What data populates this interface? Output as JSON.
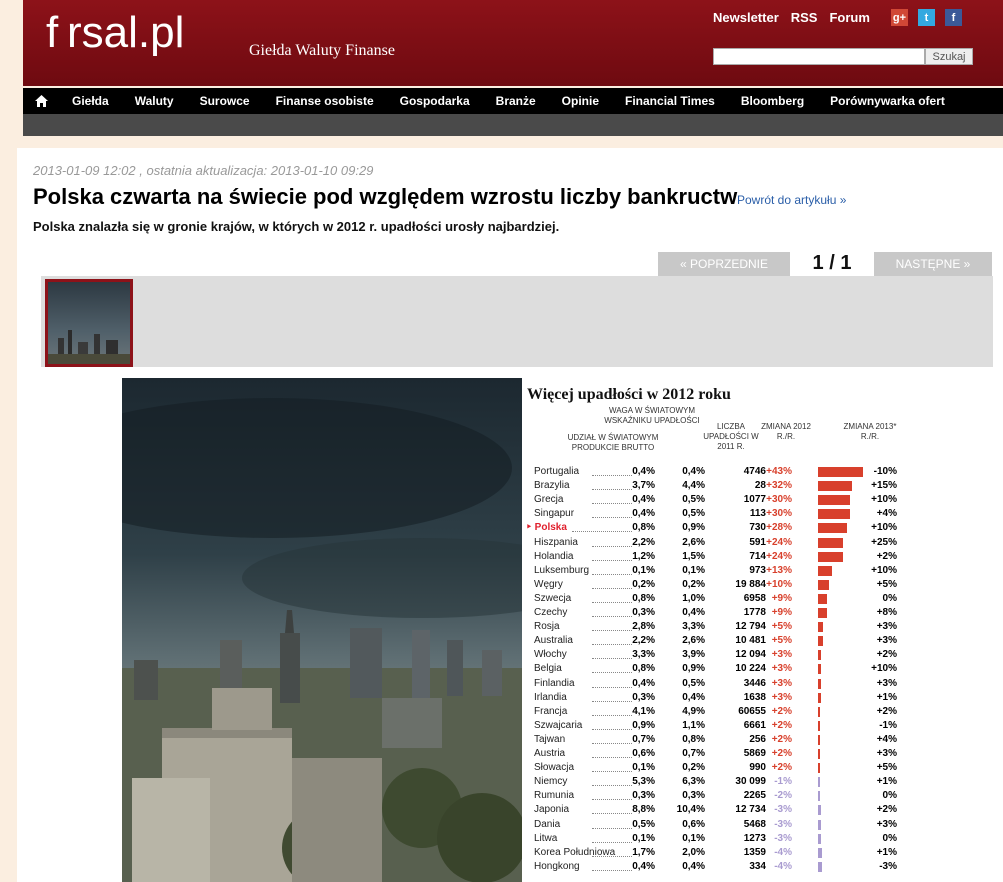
{
  "header": {
    "logo": "f rsal.pl",
    "tagline": "Giełda Waluty Finanse",
    "links": [
      "Newsletter",
      "RSS",
      "Forum"
    ],
    "search_button": "Szukaj"
  },
  "nav": [
    "Giełda",
    "Waluty",
    "Surowce",
    "Finanse osobiste",
    "Gospodarka",
    "Branże",
    "Opinie",
    "Financial Times",
    "Bloomberg",
    "Porównywarka ofert"
  ],
  "article": {
    "date": "2013-01-09 12:02 , ostatnia aktualizacja: 2013-01-10 09:29",
    "title": "Polska czwarta na świecie pod względem wzrostu liczby bankructw",
    "back_link": "Powrót do artykułu »",
    "lead": "Polska znalazła się w gronie krajów, w których w 2012 r. upadłości urosły najbardziej."
  },
  "pager": {
    "prev": "« POPRZEDNIE",
    "count": "1 / 1",
    "next": "NASTĘPNE »"
  },
  "chart_data": {
    "type": "table",
    "title": "Więcej upadłości w 2012 roku",
    "columns": [
      "UDZIAŁ W ŚWIATOWYM PRODUKCIE BRUTTO",
      "WAGA W ŚWIATOWYM WSKAŹNIKU UPADŁOŚCI",
      "LICZBA UPADŁOŚCI W 2011 R.",
      "ZMIANA 2012 R./R.",
      "ZMIANA 2013* R./R."
    ],
    "rows": [
      [
        "Portugalia",
        "0,4%",
        "0,4%",
        "4746",
        "+43%",
        "-10%",
        43
      ],
      [
        "Brazylia",
        "3,7%",
        "4,4%",
        "28",
        "+32%",
        "+15%",
        32
      ],
      [
        "Grecja",
        "0,4%",
        "0,5%",
        "1077",
        "+30%",
        "+10%",
        30
      ],
      [
        "Singapur",
        "0,4%",
        "0,5%",
        "113",
        "+30%",
        "+4%",
        30
      ],
      [
        "Polska",
        "0,8%",
        "0,9%",
        "730",
        "+28%",
        "+10%",
        28
      ],
      [
        "Hiszpania",
        "2,2%",
        "2,6%",
        "591",
        "+24%",
        "+25%",
        24
      ],
      [
        "Holandia",
        "1,2%",
        "1,5%",
        "714",
        "+24%",
        "+2%",
        24
      ],
      [
        "Luksemburg",
        "0,1%",
        "0,1%",
        "973",
        "+13%",
        "+10%",
        13
      ],
      [
        "Węgry",
        "0,2%",
        "0,2%",
        "19 884",
        "+10%",
        "+5%",
        10
      ],
      [
        "Szwecja",
        "0,8%",
        "1,0%",
        "6958",
        "+9%",
        "0%",
        9
      ],
      [
        "Czechy",
        "0,3%",
        "0,4%",
        "1778",
        "+9%",
        "+8%",
        9
      ],
      [
        "Rosja",
        "2,8%",
        "3,3%",
        "12 794",
        "+5%",
        "+3%",
        5
      ],
      [
        "Australia",
        "2,2%",
        "2,6%",
        "10 481",
        "+5%",
        "+3%",
        5
      ],
      [
        "Włochy",
        "3,3%",
        "3,9%",
        "12 094",
        "+3%",
        "+2%",
        3
      ],
      [
        "Belgia",
        "0,8%",
        "0,9%",
        "10 224",
        "+3%",
        "+10%",
        3
      ],
      [
        "Finlandia",
        "0,4%",
        "0,5%",
        "3446",
        "+3%",
        "+3%",
        3
      ],
      [
        "Irlandia",
        "0,3%",
        "0,4%",
        "1638",
        "+3%",
        "+1%",
        3
      ],
      [
        "Francja",
        "4,1%",
        "4,9%",
        "60655",
        "+2%",
        "+2%",
        2
      ],
      [
        "Szwajcaria",
        "0,9%",
        "1,1%",
        "6661",
        "+2%",
        "-1%",
        2
      ],
      [
        "Tajwan",
        "0,7%",
        "0,8%",
        "256",
        "+2%",
        "+4%",
        2
      ],
      [
        "Austria",
        "0,6%",
        "0,7%",
        "5869",
        "+2%",
        "+3%",
        2
      ],
      [
        "Słowacja",
        "0,1%",
        "0,2%",
        "990",
        "+2%",
        "+5%",
        2
      ],
      [
        "Niemcy",
        "5,3%",
        "6,3%",
        "30 099",
        "-1%",
        "+1%",
        -1
      ],
      [
        "Rumunia",
        "0,3%",
        "0,3%",
        "2265",
        "-2%",
        "0%",
        -2
      ],
      [
        "Japonia",
        "8,8%",
        "10,4%",
        "12 734",
        "-3%",
        "+2%",
        -3
      ],
      [
        "Dania",
        "0,5%",
        "0,6%",
        "5468",
        "-3%",
        "+3%",
        -3
      ],
      [
        "Litwa",
        "0,1%",
        "0,1%",
        "1273",
        "-3%",
        "0%",
        -3
      ],
      [
        "Korea Południowa",
        "1,7%",
        "2,0%",
        "1359",
        "-4%",
        "+1%",
        -4
      ],
      [
        "Hongkong",
        "0,4%",
        "0,4%",
        "334",
        "-4%",
        "-3%",
        -4
      ]
    ],
    "highlight": "Polska",
    "colors": {
      "positive": "#d8402c",
      "negative": "#a99bd0",
      "highlight": "#e0202d"
    }
  }
}
